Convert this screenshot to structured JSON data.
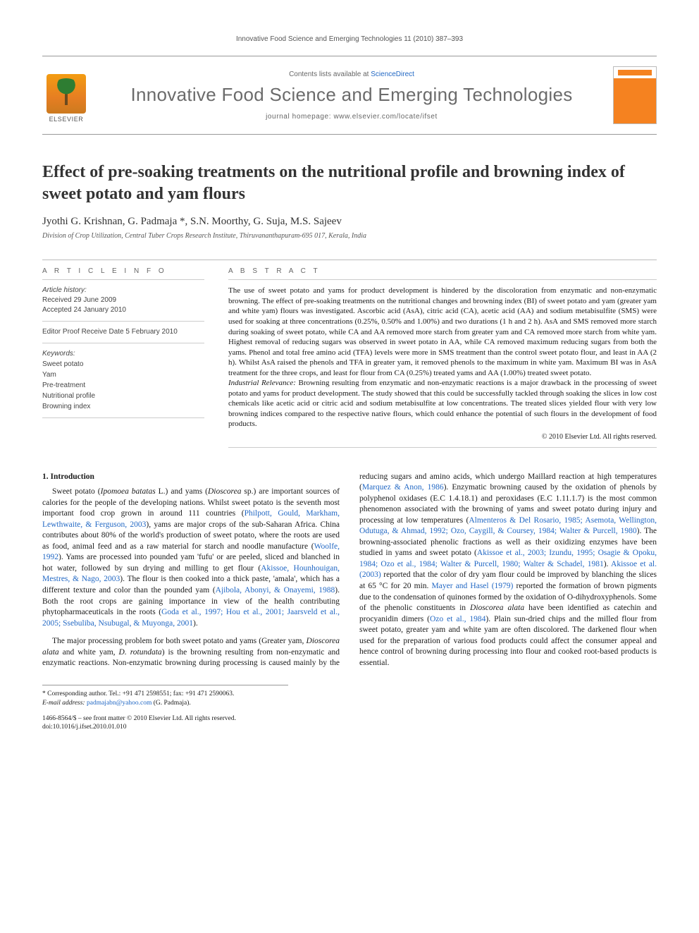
{
  "runningHead": "Innovative Food Science and Emerging Technologies 11 (2010) 387–393",
  "masthead": {
    "publisher": "ELSEVIER",
    "contentsPrefix": "Contents lists available at ",
    "contentsLink": "ScienceDirect",
    "journal": "Innovative Food Science and Emerging Technologies",
    "homepagePrefix": "journal homepage: ",
    "homepage": "www.elsevier.com/locate/ifset"
  },
  "article": {
    "title": "Effect of pre-soaking treatments on the nutritional profile and browning index of sweet potato and yam flours",
    "authorsLine": "Jyothi G. Krishnan, G. Padmaja *, S.N. Moorthy, G. Suja, M.S. Sajeev",
    "affiliation": "Division of Crop Utilization, Central Tuber Crops Research Institute, Thiruvananthapuram-695 017, Kerala, India"
  },
  "info": {
    "head": "A R T I C L E   I N F O",
    "historyLabel": "Article history:",
    "received": "Received 29 June 2009",
    "accepted": "Accepted 24 January 2010",
    "editorProof": "Editor Proof Receive Date 5 February 2010",
    "keywordsLabel": "Keywords:",
    "keywords": [
      "Sweet potato",
      "Yam",
      "Pre-treatment",
      "Nutritional profile",
      "Browning index"
    ]
  },
  "abstract": {
    "head": "A B S T R A C T",
    "p1": "The use of sweet potato and yams for product development is hindered by the discoloration from enzymatic and non-enzymatic browning. The effect of pre-soaking treatments on the nutritional changes and browning index (BI) of sweet potato and yam (greater yam and white yam) flours was investigated. Ascorbic acid (AsA), citric acid (CA), acetic acid (AA) and sodium metabisulfite (SMS) were used for soaking at three concentrations (0.25%, 0.50% and 1.00%) and two durations (1 h and 2 h). AsA and SMS removed more starch during soaking of sweet potato, while CA and AA removed more starch from greater yam and CA removed more starch from white yam. Highest removal of reducing sugars was observed in sweet potato in AA, while CA removed maximum reducing sugars from both the yams. Phenol and total free amino acid (TFA) levels were more in SMS treatment than the control sweet potato flour, and least in AA (2 h). Whilst AsA raised the phenols and TFA in greater yam, it removed phenols to the maximum in white yam. Maximum BI was in AsA treatment for the three crops, and least for flour from CA (0.25%) treated yams and AA (1.00%) treated sweet potato.",
    "irLabel": "Industrial Relevance:",
    "p2": " Browning resulting from enzymatic and non-enzymatic reactions is a major drawback in the processing of sweet potato and yams for product development. The study showed that this could be successfully tackled through soaking the slices in low cost chemicals like acetic acid or citric acid and sodium metabisulfite at low concentrations. The treated slices yielded flour with very low browning indices compared to the respective native flours, which could enhance the potential of such flours in the development of food products.",
    "copyright": "© 2010 Elsevier Ltd. All rights reserved."
  },
  "body": {
    "sec1": "1. Introduction",
    "p1a": "Sweet potato (",
    "p1sp1": "Ipomoea batatas",
    "p1b": " L.) and yams (",
    "p1sp2": "Dioscorea",
    "p1c": " sp.) are important sources of calories for the people of the developing nations. Whilst sweet potato is the seventh most important food crop grown in around 111 countries (",
    "p1ref1": "Philpott, Gould, Markham, Lewthwaite, & Ferguson, 2003",
    "p1d": "), yams are major crops of the sub-Saharan Africa. China contributes about 80% of the world's production of sweet potato, where the roots are used as food, animal feed and as a raw material for starch and noodle manufacture (",
    "p1ref2": "Woolfe, 1992",
    "p1e": "). Yams are processed into pounded yam 'fufu' or are peeled, sliced and blanched in hot water, followed by sun drying and milling to get flour (",
    "p1ref3": "Akissoe, Hounhouigan, Mestres, & Nago, 2003",
    "p1f": "). The flour is then cooked into a thick paste, 'amala', which has a different texture and color than the pounded yam (",
    "p1ref4": "Ajibola, Abonyi, & Onayemi, 1988",
    "p1g": "). Both the root crops are gaining importance in view of the health contributing phytopharmaceuticals in the roots (",
    "p1ref5": "Goda et al., 1997; Hou et al., 2001; Jaarsveld et al., 2005; Ssebuliba, Nsubugal, & Muyonga, 2001",
    "p1h": ").",
    "p2a": "The major processing problem for both sweet potato and yams (Greater yam, ",
    "p2sp1": "Dioscorea alata",
    "p2b": " and white yam, ",
    "p2sp2": "D. rotundata",
    "p2c": ") is the browning resulting from non-enzymatic and enzymatic reactions. Non-enzymatic browning during processing is caused mainly by the reducing sugars and amino acids, which undergo Maillard reaction at high temperatures (",
    "p2ref1": "Marquez & Anon, 1986",
    "p2d": "). Enzymatic browning caused by the oxidation of phenols by polyphenol oxidases (E.C 1.4.18.1) and peroxidases (E.C 1.11.1.7) is the most common phenomenon associated with the browning of yams and sweet potato during injury and processing at low temperatures (",
    "p2ref2": "Almenteros & Del Rosario, 1985; Asemota, Wellington, Odutuga, & Ahmad, 1992; Ozo, Caygill, & Coursey, 1984; Walter & Purcell, 1980",
    "p2e": "). The browning-associated phenolic fractions as well as their oxidizing enzymes have been studied in yams and sweet potato (",
    "p2ref3": "Akissoe et al., 2003; Izundu, 1995; Osagie & Opoku, 1984; Ozo et al., 1984; Walter & Purcell, 1980; Walter & Schadel, 1981",
    "p2f": "). ",
    "p2ref4": "Akissoe et al. (2003)",
    "p2g": " reported that the color of dry yam flour could be improved by blanching the slices at 65 °C for 20 min. ",
    "p2ref5": "Mayer and Hasel (1979)",
    "p2h": " reported the formation of brown pigments due to the condensation of quinones formed by the oxidation of O-dihydroxyphenols. Some of the phenolic constituents in ",
    "p2sp3": "Dioscorea alata",
    "p2i": " have been identified as catechin and procyanidin dimers (",
    "p2ref6": "Ozo et al., 1984",
    "p2j": "). Plain sun-dried chips and the milled flour from sweet potato, greater yam and white yam are often discolored. The darkened flour when used for the preparation of various food products could affect the consumer appeal and hence control of browning during processing into flour and cooked root-based products is essential."
  },
  "footer": {
    "corr1": "* Corresponding author. Tel.: +91 471 2598551; fax: +91 471 2590063.",
    "corr2Prefix": "E-mail address: ",
    "corr2Email": "padmajabn@yahoo.com",
    "corr2Suffix": " (G. Padmaja).",
    "line1": "1466-8564/$ – see front matter © 2010 Elsevier Ltd. All rights reserved.",
    "line2": "doi:10.1016/j.ifset.2010.01.010"
  },
  "colors": {
    "link": "#2268c4",
    "rule": "#999999",
    "textMuted": "#666666",
    "coverOrange": "#f58220"
  }
}
